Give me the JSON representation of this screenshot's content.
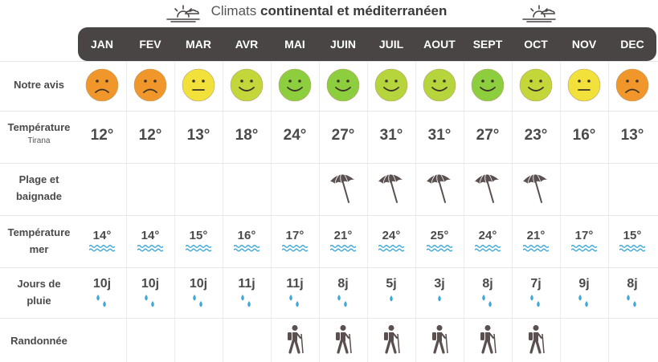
{
  "header": {
    "title_prefix": "Climats ",
    "title_bold": "continental et méditerranéen"
  },
  "months": [
    "JAN",
    "FEV",
    "MAR",
    "AVR",
    "MAI",
    "JUIN",
    "JUIL",
    "AOUT",
    "SEPT",
    "OCT",
    "NOV",
    "DEC"
  ],
  "rows": {
    "avis": {
      "label": "Notre avis"
    },
    "temp": {
      "label": "Température",
      "sub": "Tirana"
    },
    "plage": {
      "label_line1": "Plage et",
      "label_line2": "baignade"
    },
    "mer": {
      "label_line1": "Température",
      "label_line2": "mer"
    },
    "pluie": {
      "label_line1": "Jours de",
      "label_line2": "pluie"
    },
    "rando": {
      "label": "Randonnée"
    }
  },
  "avis": [
    "sad",
    "sad",
    "neutral",
    "happy",
    "happy",
    "happy",
    "happy",
    "happy",
    "happy",
    "happy",
    "neutral",
    "sad"
  ],
  "face_colors": {
    "0": "#f0962a",
    "1": "#f0962a",
    "2": "#f2e13a",
    "3": "#c3d63a",
    "4": "#8cce3e",
    "5": "#8cce3e",
    "6": "#b6d43c",
    "7": "#b6d43c",
    "8": "#8cce3e",
    "9": "#c3d63a",
    "10": "#f2e13a",
    "11": "#f0962a"
  },
  "temperatures": [
    "12°",
    "12°",
    "13°",
    "18°",
    "24°",
    "27°",
    "31°",
    "31°",
    "27°",
    "23°",
    "16°",
    "13°"
  ],
  "plage": [
    false,
    false,
    false,
    false,
    false,
    true,
    true,
    true,
    true,
    true,
    false,
    false
  ],
  "sea_temps": [
    "14°",
    "14°",
    "15°",
    "16°",
    "17°",
    "21°",
    "24°",
    "25°",
    "24°",
    "21°",
    "17°",
    "15°"
  ],
  "rain_days": [
    "10j",
    "10j",
    "10j",
    "11j",
    "11j",
    "8j",
    "5j",
    "3j",
    "8j",
    "7j",
    "9j",
    "8j"
  ],
  "rain_drops": [
    2,
    2,
    2,
    2,
    2,
    2,
    1,
    1,
    2,
    2,
    2,
    2
  ],
  "rando": [
    false,
    false,
    false,
    false,
    true,
    true,
    true,
    true,
    true,
    true,
    false,
    false
  ],
  "colors": {
    "header_bg": "#4a4545",
    "water": "#3aa7d8",
    "icon": "#5b5050"
  },
  "icons": {
    "sun": "sun-cloud-icon",
    "umbrella": "beach-umbrella-icon",
    "waves": "waves-icon",
    "drop": "rain-drop-icon",
    "hiker": "hiker-icon"
  }
}
